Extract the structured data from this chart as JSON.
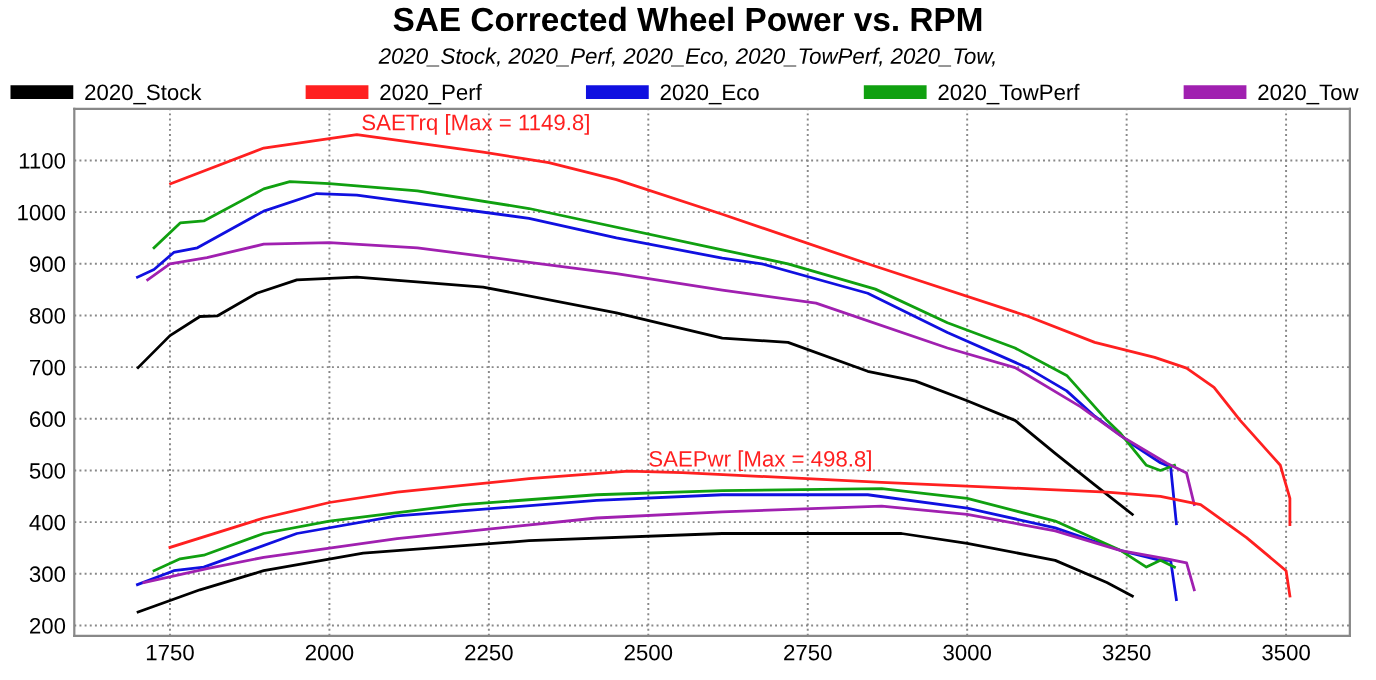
{
  "chart_data": {
    "type": "line",
    "title": "SAE Corrected Wheel Power vs. RPM",
    "subtitle": "2020_Stock, 2020_Perf, 2020_Eco, 2020_TowPerf, 2020_Tow,",
    "xlim": [
      1600,
      3600
    ],
    "ylim": [
      180,
      1200
    ],
    "xticks": [
      1750,
      2000,
      2250,
      2500,
      2750,
      3000,
      3250,
      3500
    ],
    "yticks": [
      200,
      300,
      400,
      500,
      600,
      700,
      800,
      900,
      1000,
      1100
    ],
    "grid": true,
    "legend": "top",
    "line_style": "solid",
    "marker": "none",
    "annotations": [
      {
        "text": "SAETrq [Max = 1149.8]",
        "x": 2050,
        "y": 1149.8
      },
      {
        "text": "SAEPwr [Max = 498.8]",
        "x": 2500,
        "y": 498.8
      }
    ],
    "series": [
      {
        "name": "2020_Stock",
        "color": "#000000",
        "x": [
          1700,
          1750,
          1797,
          1824,
          1886,
          1949,
          2043,
          2241,
          2450,
          2616,
          2719,
          2844,
          2919,
          3000,
          3075,
          3138,
          3200,
          3259
        ],
        "values": [
          699,
          761,
          798,
          799,
          843,
          869,
          874,
          855,
          805,
          756,
          748,
          692,
          673,
          635,
          597,
          533,
          472,
          415
        ]
      },
      {
        "name": "2020_Perf",
        "color": "#ff2020",
        "x": [
          1751,
          1897,
          2043,
          2241,
          2344,
          2450,
          2616,
          2844,
          3094,
          3200,
          3294,
          3344,
          3387,
          3428,
          3491,
          3506,
          3506
        ],
        "values": [
          1055,
          1124,
          1149.8,
          1116,
          1096,
          1063,
          996,
          900,
          799,
          748,
          719,
          698,
          661,
          597,
          510,
          446,
          395
        ]
      },
      {
        "name": "2020_Eco",
        "color": "#1010e0",
        "x": [
          1699,
          1725,
          1756,
          1793,
          1897,
          1980,
          2043,
          2313,
          2450,
          2616,
          2678,
          2844,
          2969,
          3094,
          3156,
          3200,
          3262,
          3303,
          3319,
          3328
        ],
        "values": [
          874,
          889,
          922,
          931,
          1002,
          1036,
          1033,
          988,
          950,
          911,
          900,
          843,
          767,
          699,
          654,
          605,
          548,
          515,
          507,
          397
        ]
      },
      {
        "name": "2020_TowPerf",
        "color": "#10a010",
        "x": [
          1725,
          1766,
          1803,
          1897,
          1938,
          2000,
          2138,
          2313,
          2616,
          2719,
          2856,
          2969,
          3075,
          3156,
          3219,
          3241,
          3281,
          3303,
          3325
        ],
        "values": [
          931,
          979,
          983,
          1045,
          1059,
          1055,
          1041,
          1007,
          927,
          900,
          851,
          786,
          737,
          684,
          597,
          571,
          510,
          500,
          510
        ]
      },
      {
        "name": "2020_Tow",
        "color": "#a020b0",
        "x": [
          1715,
          1750,
          1808,
          1897,
          2000,
          2138,
          2450,
          2616,
          2763,
          2969,
          3075,
          3178,
          3241,
          3313,
          3344,
          3356
        ],
        "values": [
          869,
          900,
          912,
          938,
          941,
          931,
          881,
          849,
          824,
          737,
          699,
          623,
          567,
          514,
          495,
          434
        ]
      },
      {
        "color": "#000000",
        "x": [
          1700,
          1797,
          1897,
          2053,
          2313,
          2616,
          2897,
          3000,
          3138,
          3219,
          3259
        ],
        "values": [
          226,
          269,
          306,
          340,
          364,
          378,
          378,
          359,
          326,
          283,
          257
        ]
      },
      {
        "color": "#ff2020",
        "x": [
          1750,
          1897,
          2000,
          2106,
          2313,
          2469,
          2553,
          2866,
          3219,
          3303,
          3366,
          3438,
          3500,
          3506
        ],
        "values": [
          351,
          408,
          438,
          458,
          484,
          498.8,
          496,
          477,
          458,
          450,
          434,
          370,
          306,
          257
        ]
      },
      {
        "color": "#1010e0",
        "x": [
          1699,
          1756,
          1803,
          1949,
          2106,
          2419,
          2616,
          2844,
          3000,
          3138,
          3241,
          3303,
          3319,
          3328
        ],
        "values": [
          279,
          306,
          313,
          378,
          412,
          442,
          453,
          453,
          427,
          389,
          345,
          326,
          326,
          250
        ]
      },
      {
        "color": "#10a010",
        "x": [
          1725,
          1766,
          1803,
          1897,
          2000,
          2209,
          2419,
          2616,
          2866,
          3000,
          3138,
          3241,
          3281,
          3303,
          3325
        ],
        "values": [
          306,
          329,
          336,
          378,
          402,
          434,
          453,
          461,
          465,
          446,
          402,
          345,
          313,
          326,
          313
        ]
      },
      {
        "color": "#a020b0",
        "x": [
          1709,
          1808,
          1897,
          2106,
          2419,
          2616,
          2866,
          3000,
          3138,
          3241,
          3313,
          3344,
          3356
        ],
        "values": [
          283,
          310,
          332,
          368,
          408,
          420,
          431,
          415,
          383,
          345,
          329,
          321,
          269
        ]
      }
    ]
  }
}
